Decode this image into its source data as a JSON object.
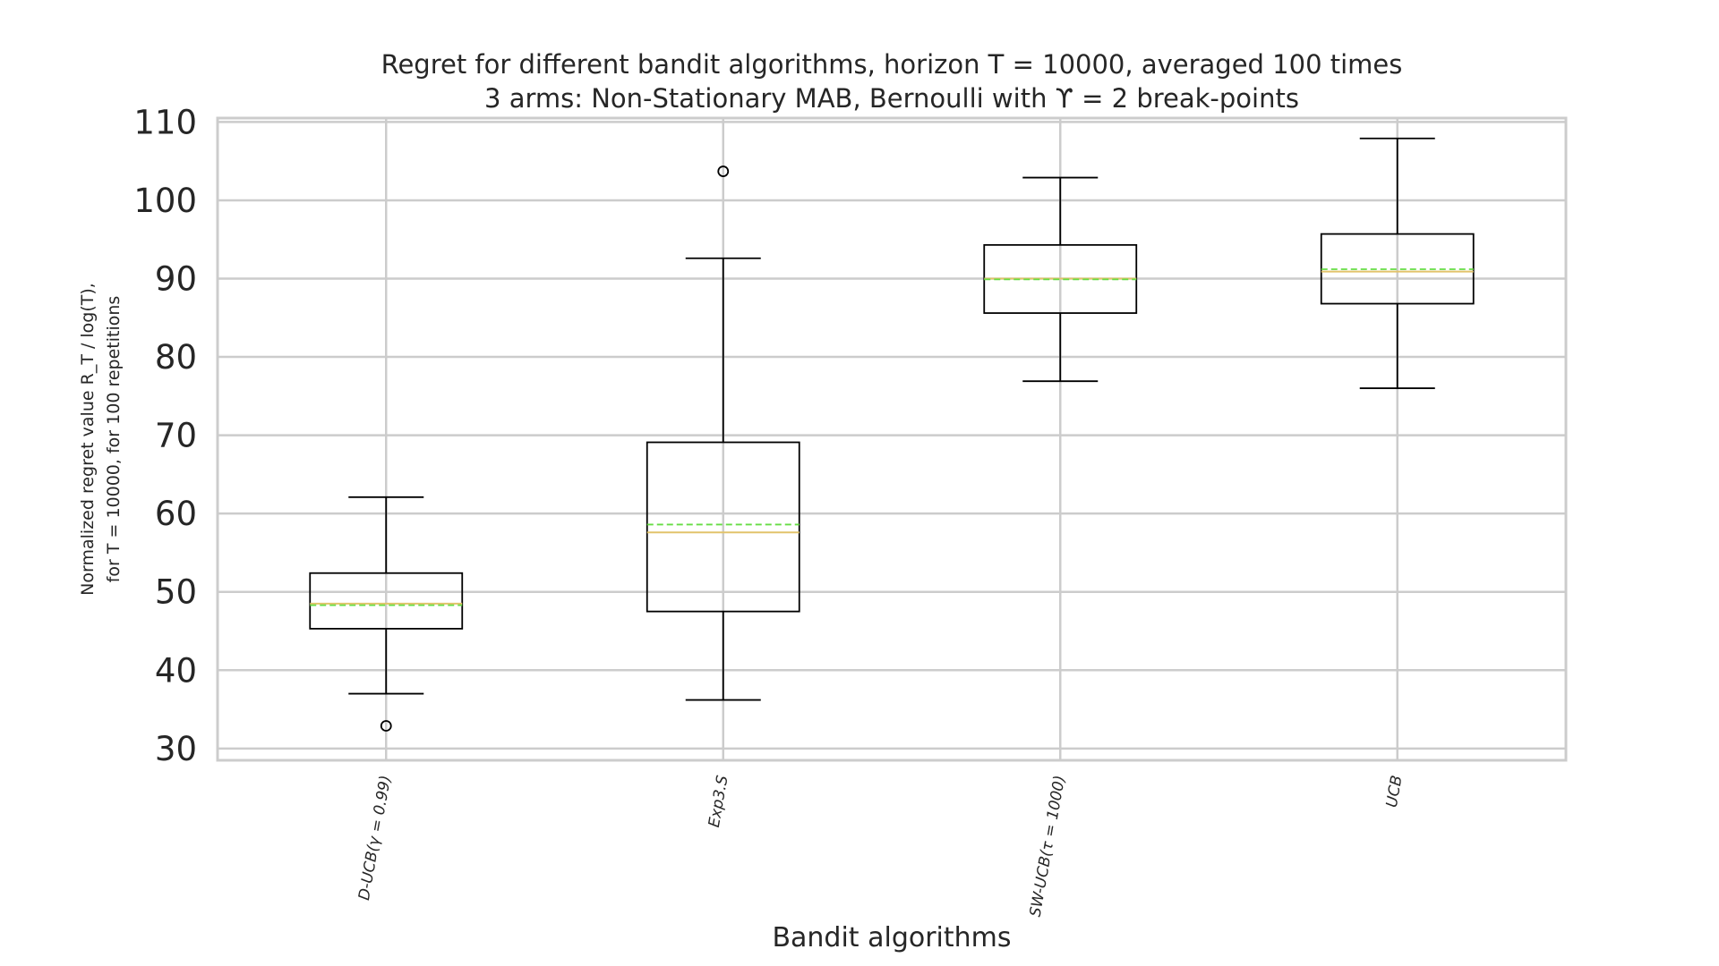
{
  "chart_data": {
    "type": "boxplot",
    "title": "Regret for different bandit algorithms, horizon T = 10000, averaged 100 times",
    "subtitle": "3 arms: Non-Stationary MAB, Bernoulli with ϒ = 2 break-points",
    "xlabel": "Bandit algorithms",
    "ylabel_line1": "Normalized regret value R_T / log(T),",
    "ylabel_line2": "for T = 10000, for 100 repetitions",
    "ylim": [
      28.5,
      110.5
    ],
    "yticks": [
      30,
      40,
      50,
      60,
      70,
      80,
      90,
      100,
      110
    ],
    "grid": true,
    "categories": [
      "D-UCB(γ = 0.99)",
      "Exp3.S",
      "SW-UCB(τ = 1000)",
      "UCB"
    ],
    "boxes": [
      {
        "label": "D-UCB(γ = 0.99)",
        "whisker_low": 37.0,
        "q1": 45.3,
        "median": 48.5,
        "mean": 48.3,
        "q3": 52.4,
        "whisker_high": 62.1,
        "fliers": [
          32.9
        ]
      },
      {
        "label": "Exp3.S",
        "whisker_low": 36.2,
        "q1": 47.5,
        "median": 57.6,
        "mean": 58.6,
        "q3": 69.1,
        "whisker_high": 92.6,
        "fliers": [
          103.7
        ]
      },
      {
        "label": "SW-UCB(τ = 1000)",
        "whisker_low": 76.9,
        "q1": 85.6,
        "median": 90.0,
        "mean": 89.9,
        "q3": 94.3,
        "whisker_high": 102.9,
        "fliers": []
      },
      {
        "label": "UCB",
        "whisker_low": 76.0,
        "q1": 86.8,
        "median": 90.9,
        "mean": 91.2,
        "q3": 95.7,
        "whisker_high": 107.9,
        "fliers": []
      }
    ]
  },
  "colors": {
    "median": "#e2c36b",
    "mean": "#66dd44",
    "grid": "#cccccc",
    "text": "#262626",
    "box": "#000000"
  }
}
